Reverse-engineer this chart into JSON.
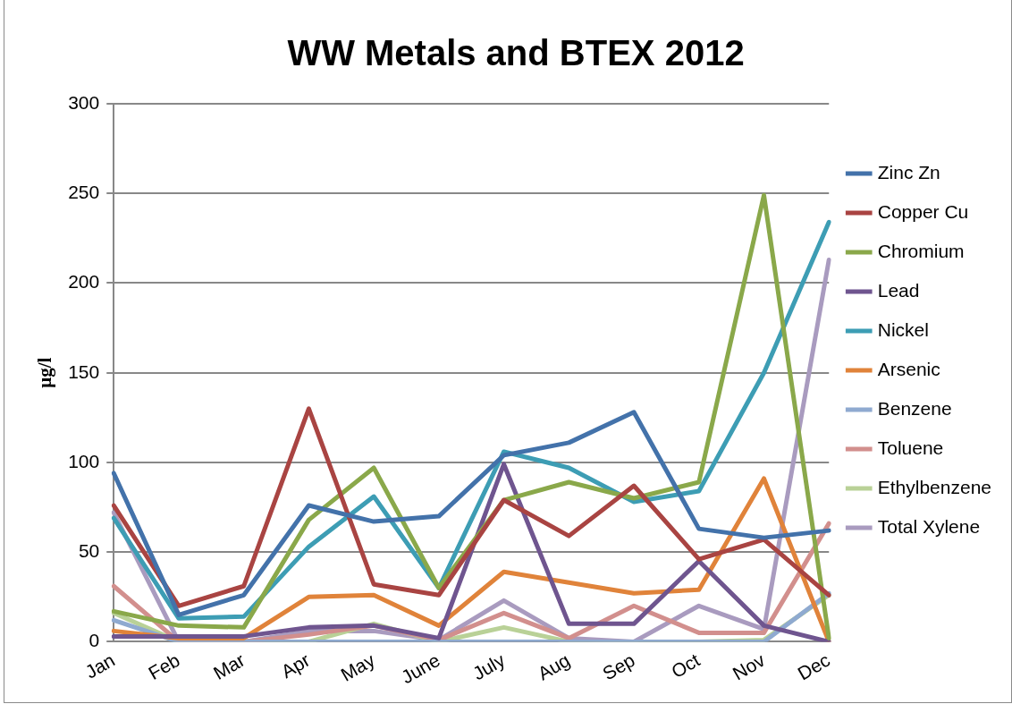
{
  "chart_data": {
    "type": "line",
    "title": "WW Metals and BTEX 2012",
    "ylabel": "µg/l",
    "categories": [
      "Jan",
      "Feb",
      "Mar",
      "Apr",
      "May",
      "June",
      "July",
      "Aug",
      "Sep",
      "Oct",
      "Nov",
      "Dec"
    ],
    "series": [
      {
        "name": "Zinc Zn",
        "color": "#4372aa",
        "values": [
          94,
          15,
          26,
          76,
          67,
          70,
          104,
          111,
          128,
          63,
          58,
          62
        ]
      },
      {
        "name": "Copper Cu",
        "color": "#a94442",
        "values": [
          76,
          20,
          31,
          130,
          32,
          26,
          79,
          59,
          87,
          46,
          57,
          26
        ]
      },
      {
        "name": "Chromium",
        "color": "#8aa84a",
        "values": [
          17,
          9,
          8,
          68,
          97,
          30,
          79,
          89,
          80,
          89,
          249,
          2
        ]
      },
      {
        "name": "Lead",
        "color": "#6f558f",
        "values": [
          3,
          3,
          3,
          8,
          9,
          2,
          99,
          10,
          10,
          45,
          9,
          0
        ]
      },
      {
        "name": "Nickel",
        "color": "#3d9db4",
        "values": [
          69,
          13,
          14,
          53,
          81,
          30,
          106,
          97,
          78,
          84,
          150,
          234
        ]
      },
      {
        "name": "Arsenic",
        "color": "#e0833a",
        "values": [
          6,
          2,
          2,
          25,
          26,
          9,
          39,
          33,
          27,
          29,
          91,
          0
        ]
      },
      {
        "name": "Benzene",
        "color": "#8faad0",
        "values": [
          12,
          0,
          0,
          0,
          0,
          0,
          0,
          0,
          0,
          0,
          0,
          27
        ]
      },
      {
        "name": "Toluene",
        "color": "#d28f8d",
        "values": [
          31,
          0,
          0,
          4,
          9,
          1,
          16,
          2,
          20,
          5,
          5,
          66
        ]
      },
      {
        "name": "Ethylbenzene",
        "color": "#b9d197",
        "values": [
          16,
          0,
          0,
          0,
          10,
          0,
          8,
          0,
          0,
          0,
          1,
          26
        ]
      },
      {
        "name": "Total Xylene",
        "color": "#a99bbf",
        "values": [
          72,
          0,
          0,
          6,
          6,
          1,
          23,
          2,
          0,
          20,
          7,
          213
        ]
      }
    ],
    "ylim": [
      0,
      300
    ],
    "yticks": [
      0,
      50,
      100,
      150,
      200,
      250,
      300
    ],
    "grid": "y",
    "legend": "right",
    "marker": "none",
    "line_style": "solid"
  }
}
